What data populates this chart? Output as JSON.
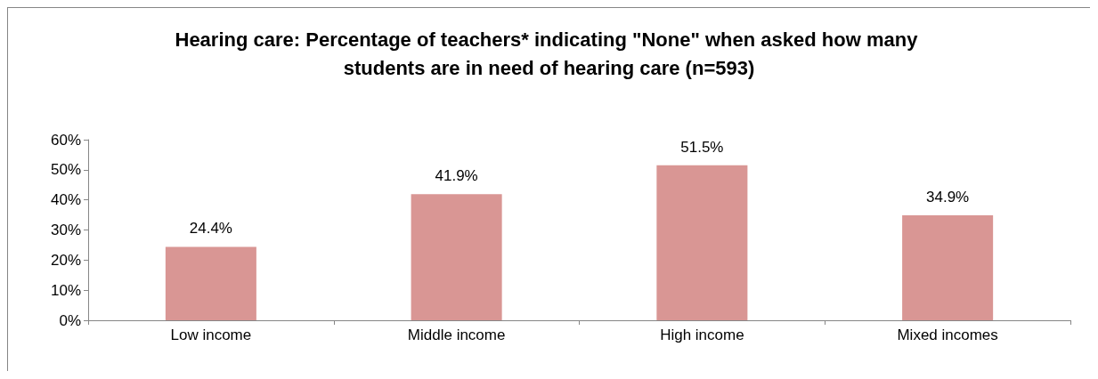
{
  "chart_data": {
    "type": "bar",
    "title": "Hearing care: Percentage of teachers* indicating \"None\" when asked how many students are in need of hearing care (n=593)",
    "categories": [
      "Low income",
      "Middle income",
      "High income",
      "Mixed incomes"
    ],
    "values": [
      24.4,
      41.9,
      51.5,
      34.9
    ],
    "value_labels": [
      "24.4%",
      "41.9%",
      "51.5%",
      "34.9%"
    ],
    "color": "#d99694",
    "ylim": [
      0,
      60
    ],
    "yticks": [
      {
        "value": 0,
        "label": "0%"
      },
      {
        "value": 10,
        "label": "10%"
      },
      {
        "value": 20,
        "label": "20%"
      },
      {
        "value": 30,
        "label": "30%"
      },
      {
        "value": 40,
        "label": "40%"
      },
      {
        "value": 50,
        "label": "50%"
      },
      {
        "value": 60,
        "label": "60%"
      }
    ],
    "grid": false
  }
}
